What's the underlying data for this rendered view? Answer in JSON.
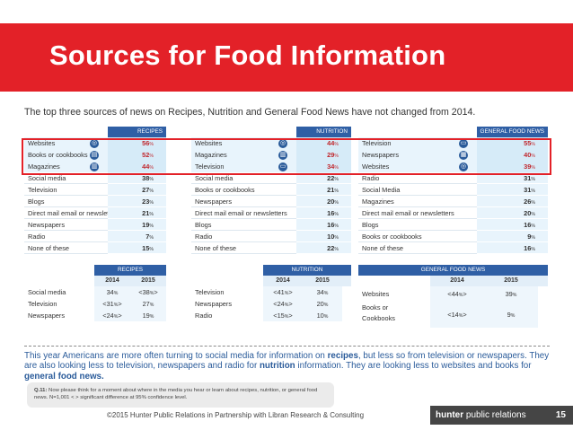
{
  "title": "Sources for Food Information",
  "subtitle": "The top three sources of news on Recipes, Nutrition and General Food News have not changed from 2014.",
  "recipes_table": {
    "header": "RECIPES",
    "rows": [
      {
        "label": "Websites",
        "value": "56",
        "icon": "globe-icon"
      },
      {
        "label": "Books or cookbooks",
        "value": "52",
        "icon": "book-icon"
      },
      {
        "label": "Magazines",
        "value": "44",
        "icon": "magazine-icon"
      },
      {
        "label": "Social media",
        "value": "38"
      },
      {
        "label": "Television",
        "value": "27"
      },
      {
        "label": "Blogs",
        "value": "23"
      },
      {
        "label": "Direct mail email or newsletters",
        "value": "21"
      },
      {
        "label": "Newspapers",
        "value": "19"
      },
      {
        "label": "Radio",
        "value": "7"
      },
      {
        "label": "None of these",
        "value": "15"
      }
    ]
  },
  "nutrition_table": {
    "header": "NUTRITION",
    "rows": [
      {
        "label": "Websites",
        "value": "44",
        "icon": "globe-icon"
      },
      {
        "label": "Magazines",
        "value": "29",
        "icon": "magazine-icon"
      },
      {
        "label": "Television",
        "value": "34",
        "icon": "tv-icon"
      },
      {
        "label": "Social media",
        "value": "22"
      },
      {
        "label": "Books or cookbooks",
        "value": "21"
      },
      {
        "label": "Newspapers",
        "value": "20"
      },
      {
        "label": "Direct mail email or newsletters",
        "value": "16"
      },
      {
        "label": "Blogs",
        "value": "16"
      },
      {
        "label": "Radio",
        "value": "10"
      },
      {
        "label": "None of these",
        "value": "22"
      }
    ]
  },
  "general_table": {
    "header": "GENERAL FOOD NEWS",
    "rows": [
      {
        "label": "Television",
        "value": "55",
        "icon": "tv-icon"
      },
      {
        "label": "Newspapers",
        "value": "40",
        "icon": "newspaper-icon"
      },
      {
        "label": "Websites",
        "value": "39",
        "icon": "globe-icon"
      },
      {
        "label": "Radio",
        "value": "31"
      },
      {
        "label": "Social Media",
        "value": "31"
      },
      {
        "label": "Magazines",
        "value": "26"
      },
      {
        "label": "Direct mail email or newsletters",
        "value": "20"
      },
      {
        "label": "Blogs",
        "value": "16"
      },
      {
        "label": "Books or cookbooks",
        "value": "9"
      },
      {
        "label": "None of these",
        "value": "16"
      }
    ]
  },
  "percent_sign": "%",
  "compare_recipes": {
    "header": "RECIPES",
    "y1": "2014",
    "y2": "2015",
    "rows": [
      {
        "label": "Social media",
        "v2014": "34",
        "v2014_pre": "",
        "v2014_post": "",
        "v2015": "38",
        "v2015_pre": "<",
        "v2015_post": ">"
      },
      {
        "label": "Television",
        "v2014": "31",
        "v2014_pre": "<",
        "v2014_post": ">",
        "v2015": "27",
        "v2015_pre": "",
        "v2015_post": ""
      },
      {
        "label": "Newspapers",
        "v2014": "24",
        "v2014_pre": "<",
        "v2014_post": ">",
        "v2015": "19",
        "v2015_pre": "",
        "v2015_post": ""
      }
    ]
  },
  "compare_nutrition": {
    "header": "NUTRITION",
    "y1": "2014",
    "y2": "2015",
    "rows": [
      {
        "label": "Television",
        "v2014": "41",
        "v2014_pre": "<",
        "v2014_post": ">",
        "v2015": "34"
      },
      {
        "label": "Newspapers",
        "v2014": "24",
        "v2014_pre": "<",
        "v2014_post": ">",
        "v2015": "20"
      },
      {
        "label": "Radio",
        "v2014": "15",
        "v2014_pre": "<",
        "v2014_post": ">",
        "v2015": "10"
      }
    ]
  },
  "compare_general": {
    "header": "GENERAL FOOD NEWS",
    "y1": "2014",
    "y2": "2015",
    "rows": [
      {
        "label": "Websites",
        "v2014": "44",
        "v2014_pre": "<",
        "v2014_post": ">",
        "v2015": "39"
      },
      {
        "label_line1": "Books or",
        "label_line2": "Cookbooks",
        "v2014": "14",
        "v2014_pre": "<",
        "v2014_post": ">",
        "v2015": "9"
      }
    ]
  },
  "note": {
    "part1": "This year Americans are more often turning to social media for information on ",
    "recipes": "recipes",
    "part2": ", but less so from television or newspapers. They are also looking less to television, newspapers and radio for ",
    "nutrition": "nutrition",
    "part3": " information.  They are looking less to websites and books for ",
    "general": "general food news."
  },
  "question": {
    "label": "Q.11:",
    "text": " Now please think for a moment about where in the media you hear or learn about recipes, nutrition, or general food news. N=1,001 < > significant difference at 95% confidence level."
  },
  "footer": "©2015 Hunter Public Relations in Partnership with Libran Research & Consulting",
  "brand": {
    "bold": "hunter",
    "rest": " public relations",
    "page": "15"
  },
  "colors": {
    "red": "#e32128",
    "blue": "#2f5fa5",
    "light_blue": "#e8f4fc"
  }
}
